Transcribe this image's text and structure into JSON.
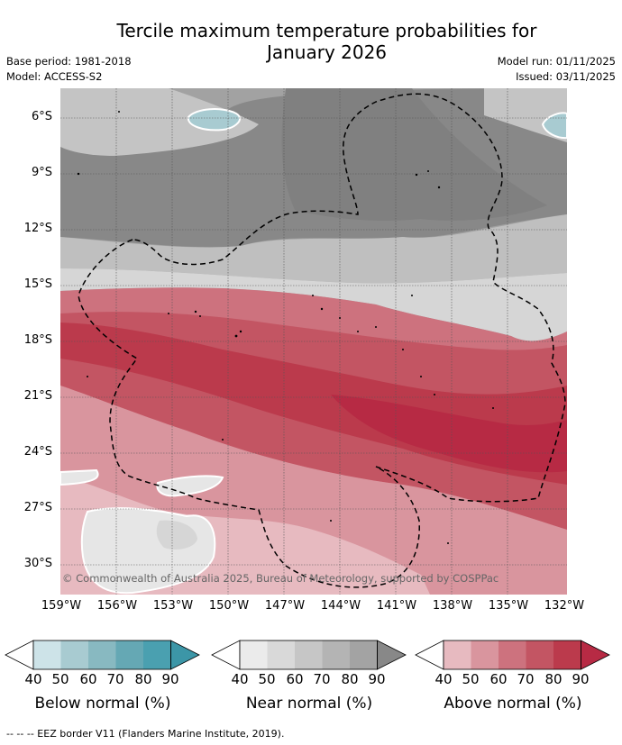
{
  "header": {
    "title": "Tercile maximum temperature probabilities for\nJanuary 2026",
    "base_period": "Base period: 1981-2018",
    "model": "Model: ACCESS-S2",
    "model_run": "Model run: 01/11/2025",
    "issued": "Issued: 03/11/2025"
  },
  "map": {
    "lat_labels": [
      "6°S",
      "9°S",
      "12°S",
      "15°S",
      "18°S",
      "21°S",
      "24°S",
      "27°S",
      "30°S"
    ],
    "lon_labels": [
      "159°W",
      "156°W",
      "153°W",
      "150°W",
      "147°W",
      "144°W",
      "141°W",
      "138°W",
      "135°W",
      "132°W"
    ],
    "copyright": "© Commonwealth of Australia 2025, Bureau of Meteorology, supported by COSPPac"
  },
  "legend": {
    "ticks": [
      "40",
      "50",
      "60",
      "70",
      "80",
      "90"
    ],
    "below": {
      "label": "Below normal (%)",
      "colors": [
        "#ffffff",
        "#cde3e8",
        "#a8cbd1",
        "#88b9c1",
        "#65a8b4",
        "#4aa0b0",
        "#3c96a7"
      ]
    },
    "near": {
      "label": "Near normal (%)",
      "colors": [
        "#ffffff",
        "#ebebeb",
        "#d9d9d9",
        "#c6c6c6",
        "#b4b4b4",
        "#a3a3a3",
        "#888888"
      ]
    },
    "above": {
      "label": "Above normal (%)",
      "colors": [
        "#ffffff",
        "#e7bac0",
        "#d9959e",
        "#cd727e",
        "#c35563",
        "#bb3a4c",
        "#b72a44"
      ]
    }
  },
  "footnote": "--  --  -- EEZ border V11 (Flanders Marine Institute, 2019)."
}
